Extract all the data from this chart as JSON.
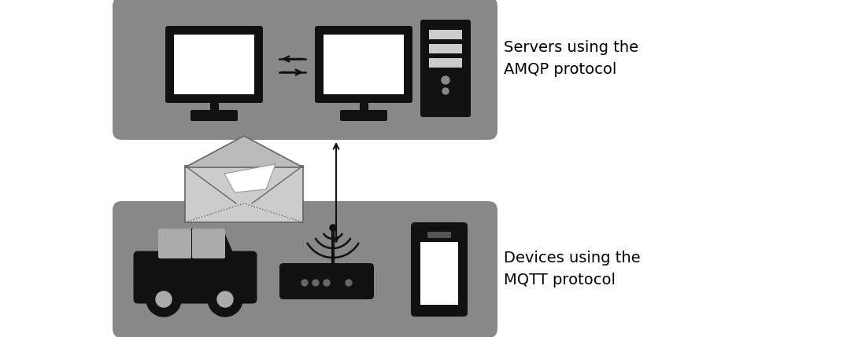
{
  "bg_color": "#ffffff",
  "box_color": "#888888",
  "text_color": "#000000",
  "icon_dark": "#111111",
  "icon_gray": "#aaaaaa",
  "env_body": "#cccccc",
  "env_outline": "#555555",
  "amqp_label": "Servers using the\nAMQP protocol",
  "mqtt_label": "Devices using the\nMQTT protocol",
  "label_fontsize": 14,
  "figsize": [
    10.9,
    4.29
  ],
  "dpi": 100
}
